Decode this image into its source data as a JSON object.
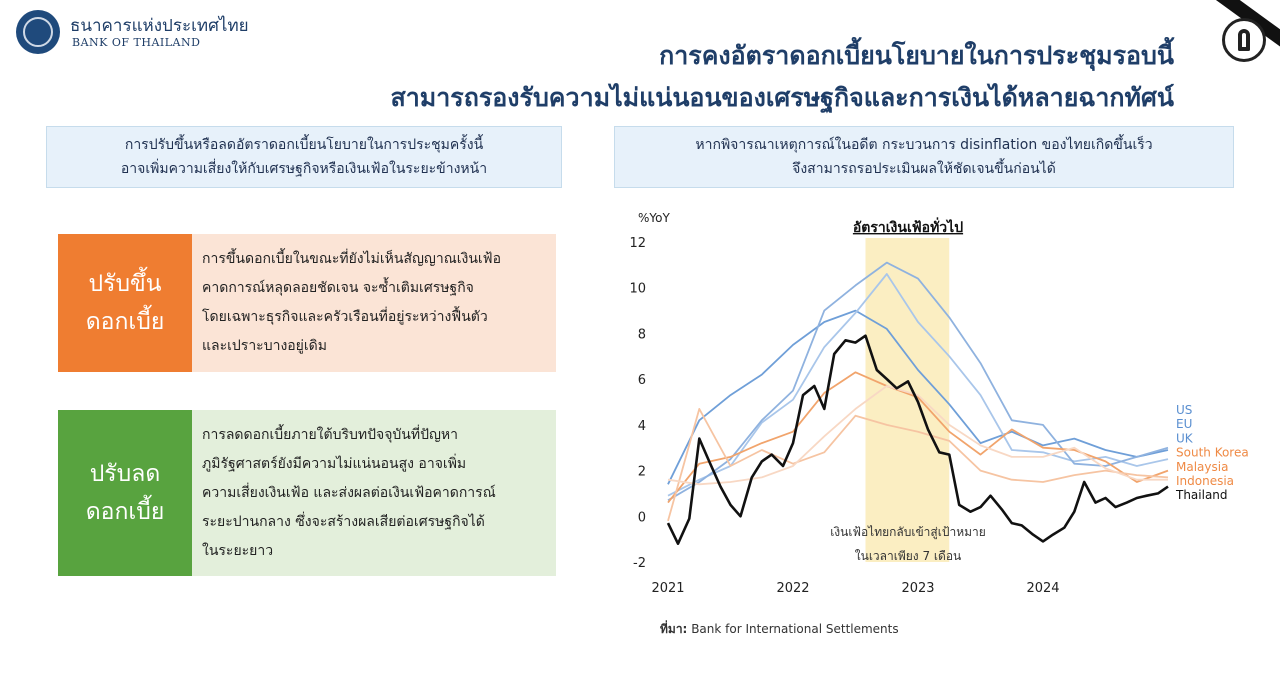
{
  "header": {
    "org_name_th": "ธนาคารแห่งประเทศไทย",
    "org_name_en": "BANK OF THAILAND",
    "title_line1": "การคงอัตราดอกเบี้ยนโยบายในการประชุมรอบนี้",
    "title_line2": "สามารถรองรับความไม่แน่นอนของเศรษฐกิจและการเงินได้หลายฉากทัศน์"
  },
  "left_panel": {
    "heading_line1": "การปรับขึ้นหรือลดอัตราดอกเบี้ยนโยบายในการประชุมครั้งนี้",
    "heading_line2": "อาจเพิ่มความเสี่ยงให้กับเศรษฐกิจหรือเงินเฟ้อในระยะข้างหน้า",
    "raise": {
      "label_line1": "ปรับขึ้น",
      "label_line2": "ดอกเบี้ย",
      "lines": [
        "การขึ้นดอกเบี้ยในขณะที่ยังไม่เห็นสัญญาณเงินเฟ้อ",
        "คาดการณ์หลุดลอยชัดเจน จะซ้ำเติมเศรษฐกิจ",
        "โดยเฉพาะธุรกิจและครัวเรือนที่อยู่ระหว่างฟื้นตัว",
        "และเปราะบางอยู่เดิม"
      ]
    },
    "cut": {
      "label_line1": "ปรับลด",
      "label_line2": "ดอกเบี้ย",
      "lines": [
        "การลดดอกเบี้ยภายใต้บริบทปัจจุบันที่ปัญหา",
        "ภูมิรัฐศาสตร์ยังมีความไม่แน่นอนสูง อาจเพิ่ม",
        "ความเสี่ยงเงินเฟ้อ และส่งผลต่อเงินเฟ้อคาดการณ์",
        "ระยะปานกลาง ซึ่งจะสร้างผลเสียต่อเศรษฐกิจได้",
        "ในระยะยาว"
      ]
    }
  },
  "right_panel": {
    "heading_line1": "หากพิจารณาเหตุการณ์ในอดีต กระบวนการ disinflation ของไทยเกิดขึ้นเร็ว",
    "heading_line2": "จึงสามารถรอประเมินผลให้ชัดเจนขึ้นก่อนได้"
  },
  "source": {
    "label": "ที่มา:",
    "text": "Bank for International Settlements"
  },
  "chart_data": {
    "type": "line",
    "title": "อัตราเงินเฟ้อทั่วไป",
    "ylabel": "%YoY",
    "xlabel": "",
    "ylim": [
      -2,
      12
    ],
    "xlim": [
      2021,
      2025
    ],
    "yticks": [
      -2,
      0,
      2,
      4,
      6,
      8,
      10,
      12
    ],
    "xticks": [
      "2021",
      "2022",
      "2023",
      "2024"
    ],
    "highlight": {
      "x_start": 2022.58,
      "x_end": 2023.25
    },
    "annotation_line1": "เงินเฟ้อไทยกลับเข้าสู่เป้าหมาย",
    "annotation_line2": "ในเวลาเพียง 7 เดือน",
    "grid": false,
    "legend": "right",
    "series": [
      {
        "name": "US",
        "color": "#6f9fd8",
        "x": [
          2021.0,
          2021.25,
          2021.5,
          2021.75,
          2022.0,
          2022.25,
          2022.5,
          2022.75,
          2023.0,
          2023.25,
          2023.5,
          2023.75,
          2024.0,
          2024.25,
          2024.5,
          2024.75,
          2025.0
        ],
        "y": [
          1.4,
          4.2,
          5.3,
          6.2,
          7.5,
          8.5,
          9.0,
          8.2,
          6.4,
          4.9,
          3.2,
          3.7,
          3.1,
          3.4,
          2.9,
          2.6,
          2.9
        ]
      },
      {
        "name": "EU",
        "color": "#a9c6ea",
        "x": [
          2021.0,
          2021.25,
          2021.5,
          2021.75,
          2022.0,
          2022.25,
          2022.5,
          2022.75,
          2023.0,
          2023.25,
          2023.5,
          2023.75,
          2024.0,
          2024.25,
          2024.5,
          2024.75,
          2025.0
        ],
        "y": [
          0.9,
          1.6,
          2.2,
          4.1,
          5.1,
          7.4,
          8.9,
          10.6,
          8.5,
          7.0,
          5.3,
          2.9,
          2.8,
          2.4,
          2.6,
          2.2,
          2.5
        ]
      },
      {
        "name": "UK",
        "color": "#8fb2df",
        "x": [
          2021.0,
          2021.25,
          2021.5,
          2021.75,
          2022.0,
          2022.25,
          2022.5,
          2022.75,
          2023.0,
          2023.25,
          2023.5,
          2023.75,
          2024.0,
          2024.25,
          2024.5,
          2024.75,
          2025.0
        ],
        "y": [
          0.7,
          1.5,
          2.5,
          4.2,
          5.5,
          9.0,
          10.1,
          11.1,
          10.4,
          8.7,
          6.7,
          4.2,
          4.0,
          2.3,
          2.2,
          2.6,
          3.0
        ]
      },
      {
        "name": "South Korea",
        "color": "#f1a46c",
        "x": [
          2021.0,
          2021.25,
          2021.5,
          2021.75,
          2022.0,
          2022.25,
          2022.5,
          2022.75,
          2023.0,
          2023.25,
          2023.5,
          2023.75,
          2024.0,
          2024.25,
          2024.5,
          2024.75,
          2025.0
        ],
        "y": [
          0.6,
          2.3,
          2.6,
          3.2,
          3.7,
          5.4,
          6.3,
          5.7,
          5.2,
          3.7,
          2.7,
          3.8,
          3.0,
          2.9,
          2.4,
          1.5,
          2.0
        ]
      },
      {
        "name": "Malaysia",
        "color": "#f6c4a2",
        "x": [
          2021.0,
          2021.25,
          2021.5,
          2021.75,
          2022.0,
          2022.25,
          2022.5,
          2022.75,
          2023.0,
          2023.25,
          2023.5,
          2023.75,
          2024.0,
          2024.25,
          2024.5,
          2024.75,
          2025.0
        ],
        "y": [
          -0.2,
          4.7,
          2.2,
          2.9,
          2.3,
          2.8,
          4.4,
          4.0,
          3.7,
          3.3,
          2.0,
          1.6,
          1.5,
          1.8,
          2.0,
          1.8,
          1.7
        ]
      },
      {
        "name": "Indonesia",
        "color": "#f8d8c4",
        "x": [
          2021.0,
          2021.25,
          2021.5,
          2021.75,
          2022.0,
          2022.25,
          2022.5,
          2022.75,
          2023.0,
          2023.25,
          2023.5,
          2023.75,
          2024.0,
          2024.25,
          2024.5,
          2024.75,
          2025.0
        ],
        "y": [
          1.6,
          1.4,
          1.5,
          1.7,
          2.2,
          3.5,
          4.7,
          5.7,
          5.3,
          4.0,
          3.1,
          2.6,
          2.6,
          3.0,
          2.1,
          1.6,
          1.6
        ]
      },
      {
        "name": "Thailand",
        "color": "#111111",
        "x": [
          2021.0,
          2021.08,
          2021.17,
          2021.25,
          2021.33,
          2021.42,
          2021.5,
          2021.58,
          2021.67,
          2021.75,
          2021.83,
          2021.92,
          2022.0,
          2022.08,
          2022.17,
          2022.25,
          2022.33,
          2022.42,
          2022.5,
          2022.58,
          2022.67,
          2022.75,
          2022.83,
          2022.92,
          2023.0,
          2023.08,
          2023.17,
          2023.25,
          2023.33,
          2023.42,
          2023.5,
          2023.58,
          2023.67,
          2023.75,
          2023.83,
          2023.92,
          2024.0,
          2024.08,
          2024.17,
          2024.25,
          2024.33,
          2024.42,
          2024.5,
          2024.58,
          2024.67,
          2024.75,
          2024.83,
          2024.92,
          2025.0
        ],
        "y": [
          -0.3,
          -1.2,
          -0.1,
          3.4,
          2.4,
          1.3,
          0.5,
          0.0,
          1.7,
          2.4,
          2.7,
          2.2,
          3.2,
          5.3,
          5.7,
          4.7,
          7.1,
          7.7,
          7.6,
          7.9,
          6.4,
          6.0,
          5.6,
          5.9,
          5.0,
          3.8,
          2.8,
          2.7,
          0.5,
          0.2,
          0.4,
          0.9,
          0.3,
          -0.3,
          -0.4,
          -0.8,
          -1.1,
          -0.8,
          -0.5,
          0.2,
          1.5,
          0.6,
          0.8,
          0.4,
          0.6,
          0.8,
          0.9,
          1.0,
          1.3
        ]
      }
    ]
  }
}
